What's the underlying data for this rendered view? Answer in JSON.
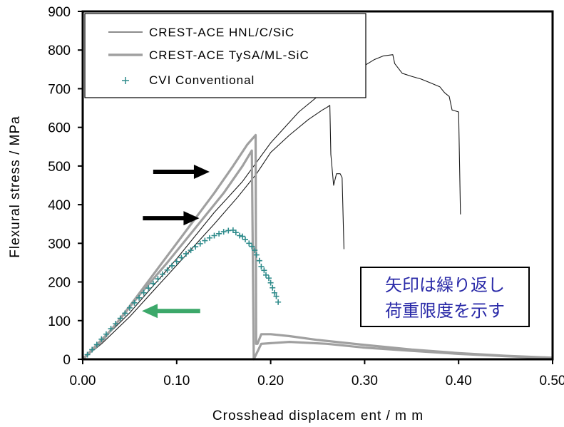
{
  "chart_data": {
    "type": "line",
    "xlabel": "Crosshead displacem ent / m m",
    "ylabel": "Flexural stress / MPa",
    "xlim": [
      0,
      0.5
    ],
    "ylim": [
      0,
      900
    ],
    "xticks": [
      "0.00",
      "0.10",
      "0.20",
      "0.30",
      "0.40",
      "0.50"
    ],
    "yticks": [
      "0",
      "100",
      "200",
      "300",
      "400",
      "500",
      "600",
      "700",
      "800",
      "900"
    ],
    "legend_position": "top-left",
    "grid": false,
    "series": [
      {
        "name": "CREST-ACE HNL/C/SiC",
        "style": "thin-line",
        "color": "#1a1a1a",
        "curves": [
          [
            [
              0.0,
              0
            ],
            [
              0.02,
              40
            ],
            [
              0.05,
              110
            ],
            [
              0.08,
              190
            ],
            [
              0.11,
              270
            ],
            [
              0.14,
              350
            ],
            [
              0.165,
              420
            ],
            [
              0.185,
              480
            ],
            [
              0.2,
              535
            ],
            [
              0.22,
              580
            ],
            [
              0.24,
              620
            ],
            [
              0.255,
              645
            ],
            [
              0.26,
              652
            ],
            [
              0.263,
              657
            ],
            [
              0.264,
              530
            ],
            [
              0.267,
              450
            ],
            [
              0.27,
              480
            ],
            [
              0.274,
              480
            ],
            [
              0.276,
              470
            ],
            [
              0.278,
              285
            ]
          ],
          [
            [
              0.0,
              0
            ],
            [
              0.05,
              120
            ],
            [
              0.1,
              260
            ],
            [
              0.14,
              380
            ],
            [
              0.17,
              460
            ],
            [
              0.2,
              560
            ],
            [
              0.23,
              640
            ],
            [
              0.26,
              700
            ],
            [
              0.29,
              745
            ],
            [
              0.31,
              775
            ],
            [
              0.32,
              785
            ],
            [
              0.33,
              788
            ],
            [
              0.332,
              765
            ],
            [
              0.34,
              740
            ],
            [
              0.35,
              732
            ],
            [
              0.36,
              725
            ],
            [
              0.37,
              715
            ],
            [
              0.38,
              705
            ],
            [
              0.385,
              690
            ],
            [
              0.39,
              680
            ],
            [
              0.393,
              645
            ],
            [
              0.4,
              640
            ],
            [
              0.402,
              375
            ]
          ]
        ]
      },
      {
        "name": "CREST-ACE TySA/ML-SiC",
        "style": "thick-line",
        "color": "#a0a0a0",
        "curves": [
          [
            [
              0.0,
              0
            ],
            [
              0.02,
              45
            ],
            [
              0.04,
              105
            ],
            [
              0.06,
              170
            ],
            [
              0.08,
              235
            ],
            [
              0.1,
              300
            ],
            [
              0.12,
              365
            ],
            [
              0.14,
              430
            ],
            [
              0.16,
              500
            ],
            [
              0.175,
              555
            ],
            [
              0.184,
              580
            ],
            [
              0.1845,
              40
            ],
            [
              0.186,
              40
            ],
            [
              0.19,
              65
            ],
            [
              0.2,
              65
            ],
            [
              0.22,
              60
            ],
            [
              0.25,
              50
            ],
            [
              0.3,
              37
            ],
            [
              0.35,
              25
            ],
            [
              0.4,
              16
            ],
            [
              0.45,
              9
            ],
            [
              0.5,
              4
            ]
          ],
          [
            [
              0.0,
              0
            ],
            [
              0.03,
              75
            ],
            [
              0.06,
              165
            ],
            [
              0.09,
              250
            ],
            [
              0.12,
              340
            ],
            [
              0.15,
              430
            ],
            [
              0.17,
              500
            ],
            [
              0.18,
              540
            ],
            [
              0.182,
              0
            ],
            [
              0.19,
              40
            ],
            [
              0.22,
              45
            ],
            [
              0.26,
              40
            ],
            [
              0.3,
              30
            ],
            [
              0.35,
              22
            ],
            [
              0.4,
              14
            ],
            [
              0.45,
              8
            ],
            [
              0.5,
              3
            ]
          ]
        ]
      },
      {
        "name": "CVI Conventional",
        "style": "markers",
        "color": "#2e8b8b",
        "points": [
          [
            0.0,
            0
          ],
          [
            0.005,
            12
          ],
          [
            0.01,
            25
          ],
          [
            0.015,
            38
          ],
          [
            0.02,
            52
          ],
          [
            0.025,
            65
          ],
          [
            0.03,
            79
          ],
          [
            0.035,
            92
          ],
          [
            0.04,
            106
          ],
          [
            0.045,
            119
          ],
          [
            0.05,
            133
          ],
          [
            0.055,
            146
          ],
          [
            0.06,
            159
          ],
          [
            0.065,
            172
          ],
          [
            0.07,
            184
          ],
          [
            0.075,
            196
          ],
          [
            0.08,
            208
          ],
          [
            0.085,
            220
          ],
          [
            0.09,
            231
          ],
          [
            0.095,
            242
          ],
          [
            0.1,
            253
          ],
          [
            0.105,
            263
          ],
          [
            0.11,
            273
          ],
          [
            0.115,
            282
          ],
          [
            0.12,
            291
          ],
          [
            0.125,
            299
          ],
          [
            0.13,
            307
          ],
          [
            0.135,
            314
          ],
          [
            0.14,
            320
          ],
          [
            0.145,
            325
          ],
          [
            0.15,
            330
          ],
          [
            0.155,
            333
          ],
          [
            0.16,
            334
          ],
          [
            0.163,
            328
          ],
          [
            0.167,
            320
          ],
          [
            0.17,
            318
          ],
          [
            0.173,
            310
          ],
          [
            0.177,
            300
          ],
          [
            0.18,
            292
          ],
          [
            0.183,
            282
          ],
          [
            0.185,
            270
          ],
          [
            0.188,
            255
          ],
          [
            0.19,
            240
          ],
          [
            0.193,
            230
          ],
          [
            0.195,
            218
          ],
          [
            0.198,
            210
          ],
          [
            0.2,
            198
          ],
          [
            0.202,
            185
          ],
          [
            0.204,
            172
          ],
          [
            0.206,
            163
          ],
          [
            0.208,
            148
          ]
        ]
      }
    ]
  },
  "annotation": {
    "line1": "矢印は繰り返し",
    "line2": "荷重限度を示す",
    "color": "#2a2aa8"
  },
  "arrows": [
    {
      "color": "#000000",
      "tip": [
        0.135,
        485
      ],
      "tail": [
        0.075,
        485
      ]
    },
    {
      "color": "#000000",
      "tip": [
        0.124,
        365
      ],
      "tail": [
        0.064,
        365
      ]
    },
    {
      "color": "#3ca86a",
      "tip": [
        0.063,
        125
      ],
      "tail": [
        0.125,
        125
      ]
    }
  ]
}
